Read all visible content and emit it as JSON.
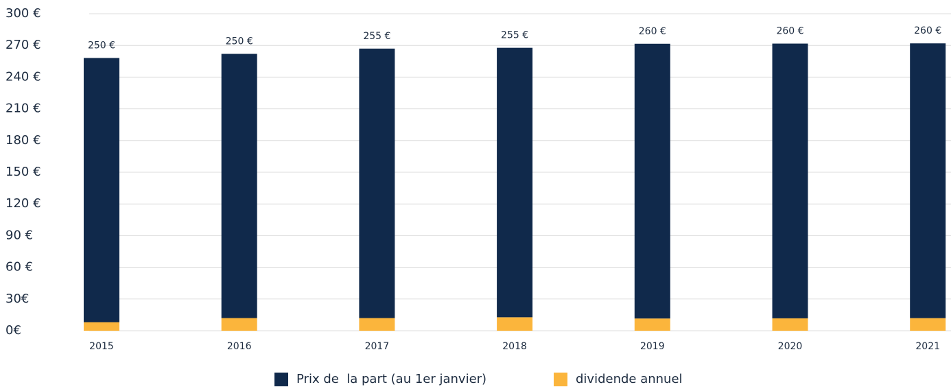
{
  "chart_data": {
    "type": "stacked_bar",
    "categories": [
      "2015",
      "2016",
      "2017",
      "2018",
      "2019",
      "2020",
      "2021"
    ],
    "series": [
      {
        "name": "Prix de  la part (au 1er janvier)",
        "color": "#10294b",
        "values": [
          250,
          250,
          255,
          255,
          260,
          260,
          260
        ],
        "value_labels": [
          "250 €",
          "250 €",
          "255 €",
          "255 €",
          "260 €",
          "260 €",
          "260 €"
        ]
      },
      {
        "name": "dividende annuel",
        "color": "#fbb53c",
        "values": [
          8.1,
          12.0,
          12.0,
          12.75,
          11.58,
          11.73,
          11.94
        ],
        "value_labels": [
          "8.1 €",
          "12.0 €",
          "12.0 €",
          "12.75 €",
          "11.58 €",
          "11.73 €",
          "11.94 €"
        ]
      }
    ],
    "ylim": [
      0,
      300
    ],
    "yticks": [
      {
        "value": 0,
        "label": "0€"
      },
      {
        "value": 30,
        "label": "30€"
      },
      {
        "value": 60,
        "label": "60 €"
      },
      {
        "value": 90,
        "label": "90 €"
      },
      {
        "value": 120,
        "label": "120 €"
      },
      {
        "value": 150,
        "label": "150 €"
      },
      {
        "value": 180,
        "label": "180 €"
      },
      {
        "value": 210,
        "label": "210 €"
      },
      {
        "value": 240,
        "label": "240 €"
      },
      {
        "value": 270,
        "label": "270 €"
      },
      {
        "value": 300,
        "label": "300 €"
      }
    ],
    "grid": true,
    "legend": "bottom"
  }
}
